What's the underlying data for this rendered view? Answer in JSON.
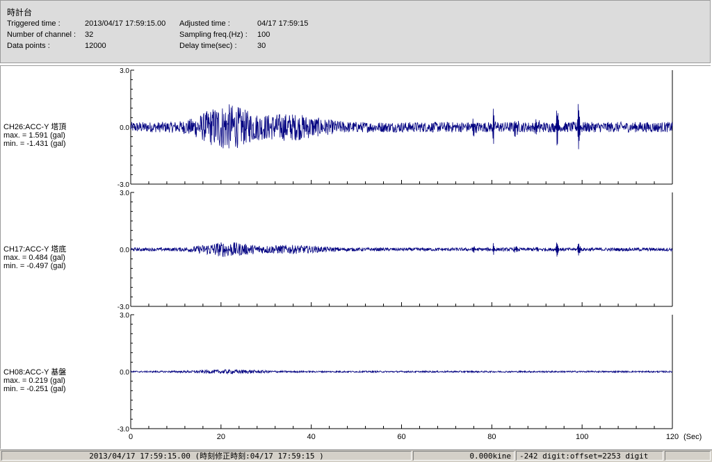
{
  "header": {
    "title": "時計台",
    "triggered_label": "Triggered time :",
    "triggered_value": "2013/04/17 17:59:15.00",
    "channels_label": "Number of channel :",
    "channels_value": "32",
    "datapoints_label": "Data points :",
    "datapoints_value": "12000",
    "adjusted_label": "Adjusted time :",
    "adjusted_value": "04/17 17:59:15",
    "sampling_label": "Sampling freq.(Hz) :",
    "sampling_value": "100",
    "delay_label": "Delay time(sec) :",
    "delay_value": "30"
  },
  "channels": [
    {
      "name": "CH26:ACC-Y 塔頂",
      "max": "max. = 1.591 (gal)",
      "min": "min. = -1.431 (gal)"
    },
    {
      "name": "CH17:ACC-Y 塔底",
      "max": "max. = 0.484 (gal)",
      "min": "min. = -0.497 (gal)"
    },
    {
      "name": "CH08:ACC-Y 基盤",
      "max": "max. = 0.219 (gal)",
      "min": "min. = -0.251 (gal)"
    }
  ],
  "chart_data": {
    "type": "line",
    "x_ticks": [
      "0",
      "20",
      "40",
      "60",
      "80",
      "100",
      "120"
    ],
    "x_unit": "(Sec)",
    "xlim": [
      0,
      120
    ],
    "y_ticks": [
      "3.0",
      "0.0",
      "-3.0"
    ],
    "ylim": [
      -3,
      3
    ],
    "line_color": "#000080",
    "series": [
      {
        "name": "CH26:ACC-Y 塔頂",
        "peak_max": 1.591,
        "peak_min": -1.431,
        "pulse_times": [
          75.6,
          80.3,
          84.9,
          89.7,
          94.3,
          99.1
        ]
      },
      {
        "name": "CH17:ACC-Y 塔底",
        "peak_max": 0.484,
        "peak_min": -0.497,
        "pulse_times": [
          75.6,
          80.3,
          84.9,
          89.7,
          94.3,
          99.1
        ]
      },
      {
        "name": "CH08:ACC-Y 基盤",
        "peak_max": 0.219,
        "peak_min": -0.251,
        "pulse_times": []
      }
    ]
  },
  "status": {
    "time": "2013/04/17 17:59:15.00 (時刻修正時刻:04/17 17:59:15 )",
    "kine": "0.000kine",
    "digit": "-242 digit:offset=2253 digit"
  }
}
